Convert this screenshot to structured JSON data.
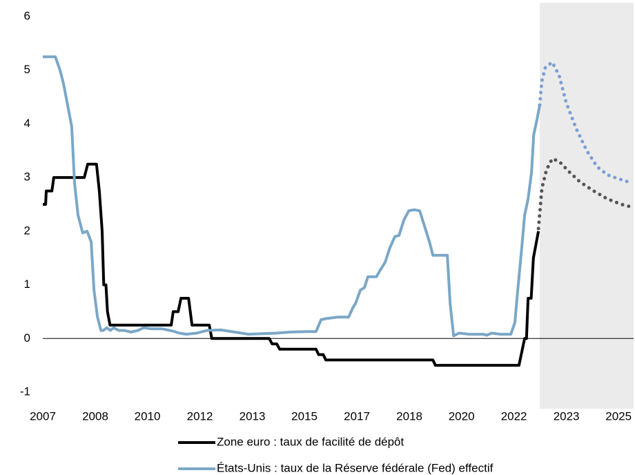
{
  "chart_data": {
    "type": "line",
    "xlim": [
      2007,
      2025.81
    ],
    "ylim": [
      -1,
      6
    ],
    "yticks": [
      -1,
      0,
      1,
      2,
      3,
      4,
      5,
      6
    ],
    "xticks": [
      {
        "value": 2007,
        "label": "2007"
      },
      {
        "value": 2008.67,
        "label": "2008"
      },
      {
        "value": 2010.33,
        "label": "2010"
      },
      {
        "value": 2012.0,
        "label": "2012"
      },
      {
        "value": 2013.67,
        "label": "2013"
      },
      {
        "value": 2015.33,
        "label": "2015"
      },
      {
        "value": 2017.0,
        "label": "2017"
      },
      {
        "value": 2018.67,
        "label": "2018"
      },
      {
        "value": 2020.33,
        "label": "2020"
      },
      {
        "value": 2022.0,
        "label": "2022"
      },
      {
        "value": 2023.67,
        "label": "2023"
      },
      {
        "value": 2025.33,
        "label": "2025"
      }
    ],
    "grid": false,
    "forecast_shade": [
      2022.82,
      2025.81
    ],
    "shade_color": "#ebebeb",
    "series": [
      {
        "name": "Zone euro : taux de facilité de dépôt",
        "color": "#000000",
        "style": "solid",
        "x": [
          2007.0,
          2007.09,
          2007.11,
          2007.29,
          2007.35,
          2008.32,
          2008.43,
          2008.71,
          2008.8,
          2008.89,
          2008.94,
          2009.01,
          2009.06,
          2009.14,
          2011.09,
          2011.15,
          2011.31,
          2011.4,
          2011.64,
          2011.75,
          2012.3,
          2012.38,
          2014.21,
          2014.3,
          2014.45,
          2014.54,
          2015.7,
          2015.78,
          2015.93,
          2016.01,
          2019.42,
          2019.5,
          2022.16,
          2022.34,
          2022.4,
          2022.45,
          2022.55,
          2022.62,
          2022.78
        ],
        "values": [
          2.5,
          2.5,
          2.75,
          2.75,
          3.0,
          3.0,
          3.25,
          3.25,
          2.75,
          2.0,
          1.0,
          1.0,
          0.5,
          0.25,
          0.25,
          0.5,
          0.5,
          0.75,
          0.75,
          0.25,
          0.25,
          0,
          0,
          -0.1,
          -0.1,
          -0.2,
          -0.2,
          -0.3,
          -0.3,
          -0.4,
          -0.4,
          -0.5,
          -0.5,
          0,
          0,
          0.75,
          0.75,
          1.5,
          2.0
        ]
      },
      {
        "name": "États-Unis : taux de la Réserve fédérale (Fed) effectif",
        "color": "#7ba7c7",
        "style": "solid",
        "x": [
          2007.0,
          2007.4,
          2007.55,
          2007.66,
          2007.92,
          2008.01,
          2008.12,
          2008.27,
          2008.41,
          2008.54,
          2008.63,
          2008.74,
          2008.85,
          2008.93,
          2009.04,
          2009.15,
          2009.26,
          2009.42,
          2009.59,
          2009.81,
          2010.03,
          2010.21,
          2010.47,
          2010.8,
          2011.13,
          2011.35,
          2011.57,
          2011.9,
          2012.23,
          2012.67,
          2013.11,
          2013.55,
          2013.99,
          2014.43,
          2014.87,
          2015.42,
          2015.7,
          2015.86,
          2016.01,
          2016.41,
          2016.74,
          2016.85,
          2016.96,
          2017.11,
          2017.24,
          2017.35,
          2017.62,
          2017.77,
          2017.9,
          2018.05,
          2018.21,
          2018.34,
          2018.49,
          2018.65,
          2018.82,
          2019.0,
          2019.15,
          2019.31,
          2019.42,
          2019.7,
          2019.88,
          2019.97,
          2020.08,
          2020.25,
          2020.58,
          2021.02,
          2021.13,
          2021.29,
          2021.57,
          2021.9,
          2022.03,
          2022.12,
          2022.25,
          2022.34,
          2022.45,
          2022.56,
          2022.63,
          2022.74,
          2022.82
        ],
        "values": [
          5.25,
          5.25,
          5.0,
          4.75,
          3.95,
          2.9,
          2.3,
          1.97,
          2.0,
          1.8,
          0.9,
          0.4,
          0.15,
          0.15,
          0.2,
          0.15,
          0.2,
          0.15,
          0.15,
          0.12,
          0.15,
          0.2,
          0.18,
          0.18,
          0.14,
          0.1,
          0.08,
          0.1,
          0.15,
          0.16,
          0.12,
          0.08,
          0.09,
          0.1,
          0.12,
          0.13,
          0.13,
          0.35,
          0.37,
          0.4,
          0.4,
          0.55,
          0.66,
          0.9,
          0.95,
          1.15,
          1.15,
          1.3,
          1.42,
          1.69,
          1.9,
          1.92,
          2.2,
          2.38,
          2.4,
          2.38,
          2.1,
          1.8,
          1.55,
          1.55,
          1.55,
          0.65,
          0.05,
          0.1,
          0.08,
          0.08,
          0.06,
          0.1,
          0.08,
          0.08,
          0.3,
          0.9,
          1.7,
          2.3,
          2.6,
          3.1,
          3.8,
          4.1,
          4.35
        ]
      },
      {
        "color": "#555555",
        "style": "dotted",
        "x": [
          2022.78,
          2022.89,
          2023.04,
          2023.22,
          2023.44,
          2023.77,
          2024.1,
          2024.54,
          2024.98,
          2025.42,
          2025.75
        ],
        "values": [
          2.05,
          2.8,
          3.15,
          3.35,
          3.3,
          3.1,
          2.92,
          2.75,
          2.6,
          2.5,
          2.45
        ]
      },
      {
        "color": "#7b9fd6",
        "style": "dotted",
        "x": [
          2022.82,
          2022.89,
          2023.0,
          2023.22,
          2023.44,
          2023.66,
          2023.99,
          2024.32,
          2024.65,
          2024.98,
          2025.31,
          2025.64
        ],
        "values": [
          4.35,
          4.8,
          5.05,
          5.15,
          4.9,
          4.4,
          3.9,
          3.5,
          3.2,
          3.05,
          2.98,
          2.92
        ]
      }
    ]
  }
}
